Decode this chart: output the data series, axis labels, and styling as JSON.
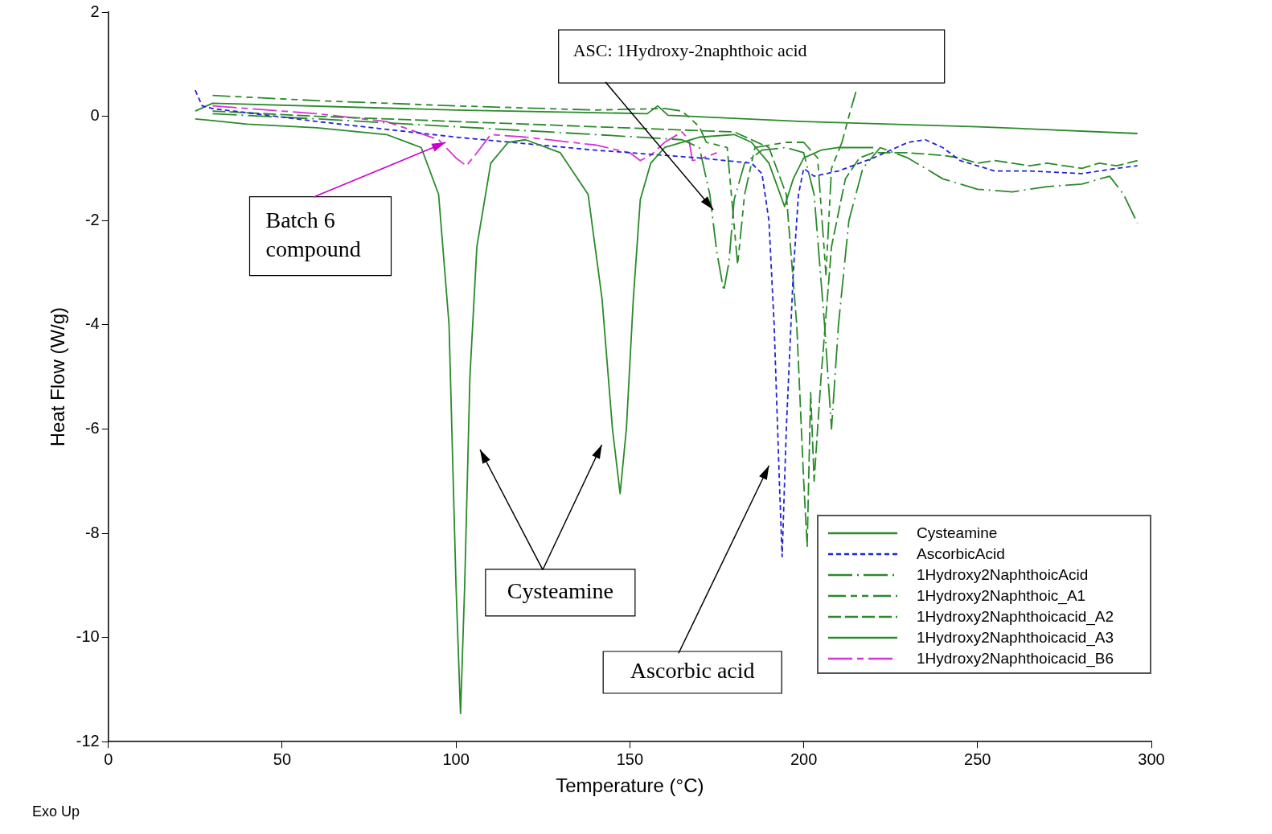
{
  "chart_data": {
    "type": "line",
    "xlabel": "Temperature (°C)",
    "ylabel": "Heat Flow (W/g)",
    "xlim": [
      0,
      300
    ],
    "xticks": [
      0,
      50,
      100,
      150,
      200,
      250,
      300
    ],
    "ylim": [
      -12,
      2
    ],
    "yticks": [
      -12,
      -10,
      -8,
      -6,
      -4,
      -2,
      0,
      2
    ],
    "grid": false,
    "legend": "bottom right",
    "marker": "none",
    "series": [
      {
        "name": "Cysteamine",
        "color": "#2a8a2a",
        "line_style": "solid",
        "x": [
          25,
          40,
          60,
          80,
          90,
          95,
          98,
          100,
          101.3,
          102.5,
          104,
          106,
          110,
          115,
          120,
          130,
          138,
          142,
          145,
          147.2,
          149,
          151,
          153,
          156,
          160,
          170,
          180,
          185,
          190,
          194.5,
          197,
          200,
          205,
          210,
          220
        ],
        "values": [
          -0.05,
          -0.15,
          -0.22,
          -0.35,
          -0.6,
          -1.5,
          -4,
          -9,
          -11.46,
          -9,
          -5,
          -2.5,
          -0.9,
          -0.5,
          -0.45,
          -0.7,
          -1.5,
          -3.5,
          -6,
          -7.24,
          -6,
          -3.5,
          -1.6,
          -0.9,
          -0.6,
          -0.4,
          -0.35,
          -0.5,
          -0.9,
          -1.73,
          -1.2,
          -0.8,
          -0.65,
          -0.6,
          -0.6
        ]
      },
      {
        "name": "AscorbicAcid",
        "color": "#2323d6",
        "line_style": "dashed",
        "x": [
          25,
          27,
          30,
          60,
          100,
          140,
          170,
          185,
          188,
          190,
          191.5,
          193,
          193.8,
          195,
          197,
          198.5,
          200,
          203,
          210,
          220,
          230,
          235,
          240,
          245,
          255,
          265,
          280,
          290,
          296
        ],
        "values": [
          0.5,
          0.2,
          0.15,
          -0.1,
          -0.4,
          -0.65,
          -0.8,
          -0.9,
          -1.1,
          -2,
          -4,
          -7,
          -8.45,
          -6,
          -3,
          -1.5,
          -1,
          -1.15,
          -1.05,
          -0.8,
          -0.5,
          -0.45,
          -0.6,
          -0.85,
          -1.05,
          -1.05,
          -1.1,
          -1,
          -0.95
        ]
      },
      {
        "name": "1Hydroxy2NaphthoicAcid",
        "color": "#2a8a2a",
        "line_style": "dashed",
        "x": [
          30,
          60,
          100,
          140,
          165,
          170,
          173,
          175,
          177,
          178.5,
          180,
          183,
          188,
          195,
          200,
          203,
          206,
          208,
          210,
          213,
          217,
          222,
          230,
          240,
          250,
          260,
          270,
          280,
          288,
          292,
          296
        ],
        "values": [
          0.05,
          -0.05,
          -0.2,
          -0.35,
          -0.45,
          -0.6,
          -1.5,
          -2.6,
          -3.35,
          -2.8,
          -1.6,
          -0.9,
          -0.65,
          -0.6,
          -0.7,
          -1.5,
          -4,
          -6,
          -4,
          -2,
          -1,
          -0.6,
          -0.8,
          -1.2,
          -1.4,
          -1.45,
          -1.35,
          -1.3,
          -1.15,
          -1.5,
          -2.05
        ]
      },
      {
        "name": "1Hydroxy2Naphthoic_A1",
        "color": "#2a8a2a",
        "line_style": "dashed",
        "x": [
          30,
          60,
          100,
          140,
          160,
          165,
          170,
          172,
          178,
          181,
          183,
          186,
          195,
          200,
          204,
          206.4,
          208,
          211,
          213,
          215
        ],
        "values": [
          0.4,
          0.3,
          0.2,
          0.12,
          0.15,
          0.1,
          -0.2,
          -0.5,
          -0.6,
          -2.85,
          -1.5,
          -0.6,
          -0.5,
          -0.5,
          -0.8,
          -3.04,
          -1,
          -0.5,
          0,
          0.47
        ]
      },
      {
        "name": "1Hydroxy2Naphthoicacid_A2",
        "color": "#2a8a2a",
        "line_style": "dashed",
        "x": [
          30,
          60,
          100,
          140,
          160,
          180,
          190,
          195,
          198,
          200,
          201,
          202,
          203,
          205,
          208,
          212,
          216,
          220,
          230,
          240,
          245,
          250,
          255,
          260,
          265,
          270,
          275,
          280,
          285,
          290,
          296
        ],
        "values": [
          0.1,
          0,
          -0.1,
          -0.2,
          -0.25,
          -0.3,
          -0.6,
          -1.5,
          -4,
          -7,
          -8.25,
          -5.3,
          -7,
          -5,
          -2.5,
          -1.2,
          -0.8,
          -0.7,
          -0.7,
          -0.75,
          -0.8,
          -0.9,
          -0.85,
          -0.9,
          -0.95,
          -0.9,
          -0.95,
          -1,
          -0.9,
          -0.95,
          -0.85
        ]
      },
      {
        "name": "1Hydroxy2Naphthoicacid_A3",
        "color": "#2a8a2a",
        "line_style": "solid",
        "x": [
          25,
          30,
          100,
          140,
          155,
          158,
          161,
          200,
          250,
          296
        ],
        "values": [
          0.1,
          0.25,
          0.12,
          0.07,
          0.05,
          0.2,
          0.02,
          -0.1,
          -0.2,
          -0.33
        ]
      },
      {
        "name": "1Hydroxy2Naphthoicacid_B6",
        "color": "#d633d6",
        "line_style": "dashed",
        "x": [
          30,
          60,
          80,
          95,
          100,
          103,
          106,
          110,
          120,
          140,
          150,
          153,
          156,
          160,
          165,
          167,
          168,
          171,
          175
        ],
        "values": [
          0.2,
          0.05,
          -0.1,
          -0.45,
          -0.8,
          -0.95,
          -0.7,
          -0.35,
          -0.4,
          -0.55,
          -0.7,
          -0.85,
          -0.75,
          -0.5,
          -0.3,
          -0.45,
          -0.85,
          -0.8,
          -0.7
        ]
      }
    ],
    "annotations": [
      {
        "text": "ASC: 1Hydroxy-2naphthoic acid",
        "x": 174,
        "y": -1.8
      },
      {
        "text": "Batch 6 compound",
        "x": 97,
        "y": -0.5
      },
      "Cysteamine",
      "Ascorbic acid",
      "Exo Up"
    ]
  }
}
